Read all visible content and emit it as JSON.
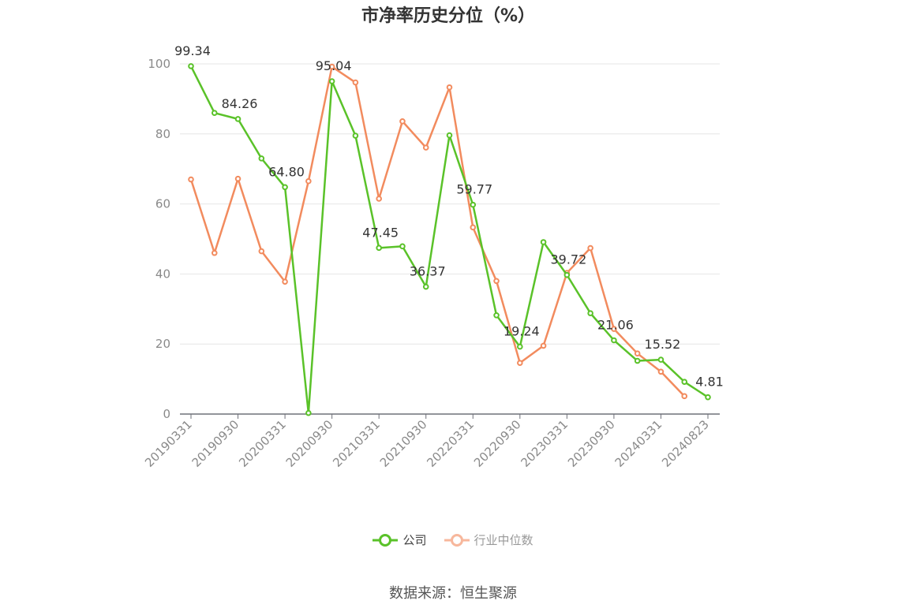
{
  "title": "市净率历史分位（%）",
  "source": "数据来源：恒生聚源",
  "legend": [
    {
      "name": "公司",
      "color": "#5ac229",
      "text_color": "#444444"
    },
    {
      "name": "行业中位数",
      "color": "#f7b79c",
      "text_color": "#999999"
    }
  ],
  "chart_data": {
    "type": "line",
    "title": "市净率历史分位（%）",
    "ylim": [
      0,
      100
    ],
    "yticks": [
      0,
      20,
      40,
      60,
      80,
      100
    ],
    "grid": true,
    "legend_position": "bottom",
    "x": [
      "20190331",
      "20190630",
      "20190930",
      "20191231",
      "20200331",
      "20200630",
      "20200930",
      "20201231",
      "20210331",
      "20210630",
      "20210930",
      "20211231",
      "20220331",
      "20220630",
      "20220930",
      "20221231",
      "20230331",
      "20230630",
      "20230930",
      "20231231",
      "20240331",
      "20240630",
      "20240823"
    ],
    "x_tick_labels": [
      "20190331",
      "20190930",
      "20200331",
      "20200930",
      "20210331",
      "20210930",
      "20220331",
      "20220930",
      "20230331",
      "20230930",
      "20240331",
      "20240823"
    ],
    "series": [
      {
        "name": "公司",
        "color": "#5ac229",
        "values": [
          99.34,
          86.0,
          84.26,
          73.0,
          64.8,
          0.3,
          95.04,
          79.5,
          47.45,
          47.9,
          36.37,
          79.6,
          59.77,
          28.2,
          19.24,
          49.1,
          39.72,
          28.8,
          21.06,
          15.2,
          15.52,
          9.2,
          4.81
        ]
      },
      {
        "name": "行业中位数",
        "color": "#f28b5e",
        "values": [
          67.0,
          46.0,
          67.2,
          46.5,
          37.8,
          66.5,
          99.2,
          94.7,
          61.5,
          83.6,
          76.1,
          93.3,
          53.3,
          38.0,
          14.6,
          19.5,
          40.3,
          47.4,
          24.3,
          17.3,
          12.1,
          5.1,
          null
        ]
      }
    ],
    "data_labels": [
      {
        "series": 0,
        "index": 0,
        "text": "99.34"
      },
      {
        "series": 0,
        "index": 2,
        "text": "84.26"
      },
      {
        "series": 0,
        "index": 4,
        "text": "64.80"
      },
      {
        "series": 0,
        "index": 6,
        "text": "95.04"
      },
      {
        "series": 0,
        "index": 8,
        "text": "47.45"
      },
      {
        "series": 0,
        "index": 10,
        "text": "36.37"
      },
      {
        "series": 0,
        "index": 12,
        "text": "59.77"
      },
      {
        "series": 0,
        "index": 14,
        "text": "19.24"
      },
      {
        "series": 0,
        "index": 16,
        "text": "39.72"
      },
      {
        "series": 0,
        "index": 18,
        "text": "21.06"
      },
      {
        "series": 0,
        "index": 20,
        "text": "15.52"
      },
      {
        "series": 0,
        "index": 22,
        "text": "4.81"
      }
    ]
  }
}
